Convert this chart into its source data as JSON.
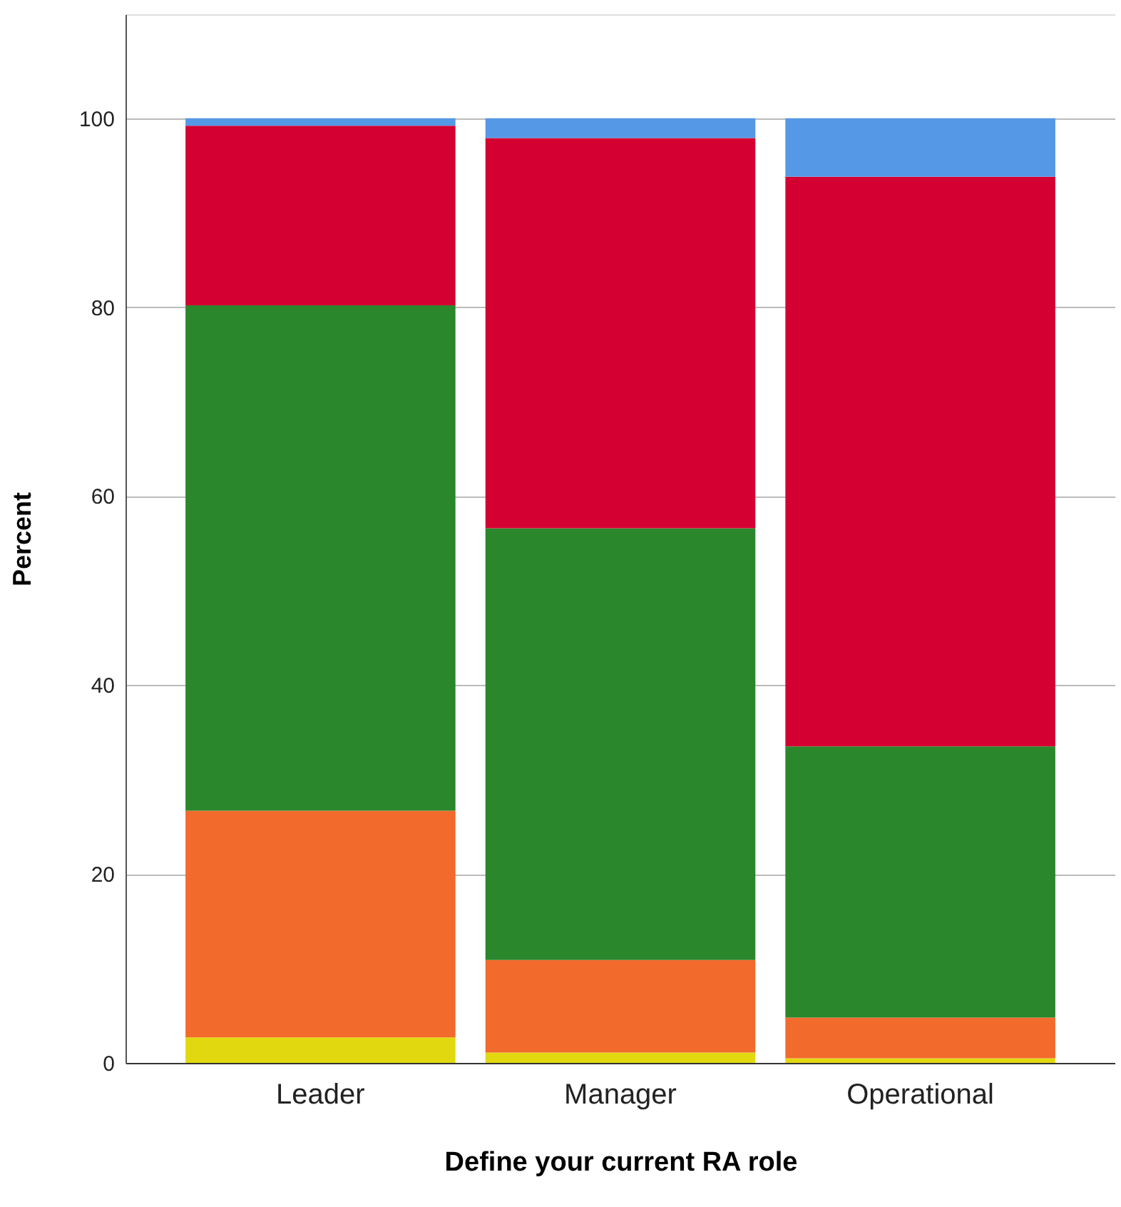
{
  "chart_data": {
    "type": "bar",
    "stacked": true,
    "xlabel": "Define your current RA role",
    "ylabel": "Percent",
    "categories": [
      "Leader",
      "Manager",
      "Operational"
    ],
    "series": [
      {
        "color": "#e1d80f",
        "values": [
          2.7,
          1.1,
          0.5
        ]
      },
      {
        "color": "#f26a2c",
        "values": [
          24.0,
          9.8,
          4.3
        ]
      },
      {
        "color": "#2a872b",
        "values": [
          53.5,
          45.7,
          28.7
        ]
      },
      {
        "color": "#d50032",
        "values": [
          19.0,
          41.3,
          60.3
        ]
      },
      {
        "color": "#5598e5",
        "values": [
          0.8,
          2.1,
          6.2
        ]
      }
    ],
    "ylim": [
      0,
      111
    ],
    "yticks": [
      0,
      20,
      40,
      60,
      80,
      100
    ],
    "grid": "y",
    "legend": false
  }
}
